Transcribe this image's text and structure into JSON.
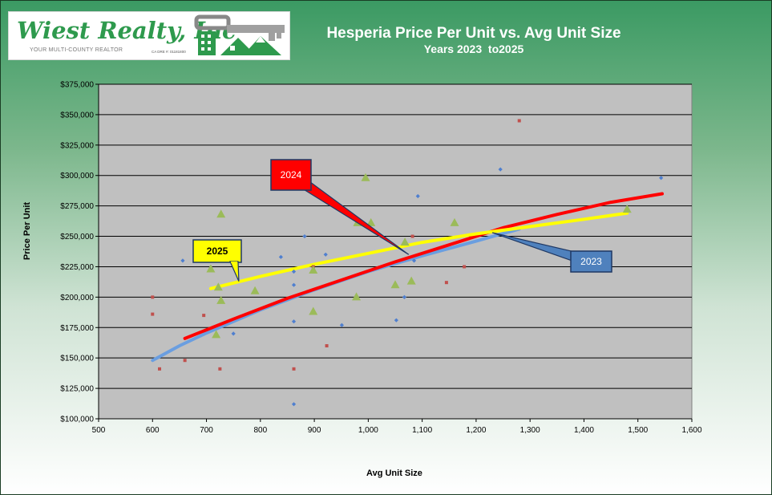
{
  "logo": {
    "name": "Wiest Realty, Inc",
    "tagline": "YOUR MULTI-COUNTY REALTOR",
    "license": "CA DRE #: 01181800"
  },
  "colors": {
    "plot_background": "#c0c0c0",
    "series_2023": "#4f7fcf",
    "series_2024": "#c0504d",
    "series_2025": "#9bbb59",
    "trend_2023": "#6a9ee0",
    "trend_2024": "#ff0000",
    "trend_2025": "#ffff00",
    "callout_2023": "#4f81bd",
    "callout_2024": "#ff0000",
    "callout_2025": "#ffff00"
  },
  "chart_data": {
    "type": "scatter",
    "title": "Hesperia Price Per Unit vs. Avg Unit Size",
    "subtitle": "Years 2023  to2025",
    "xlabel": "Avg  Unit  Size",
    "ylabel": "Price Per Unit",
    "xlim": [
      500,
      1600
    ],
    "ylim": [
      100000,
      375000
    ],
    "x_ticks": [
      "500",
      "600",
      "700",
      "800",
      "900",
      "1,000",
      "1,100",
      "1,200",
      "1,300",
      "1,400",
      "1,500",
      "1,600"
    ],
    "y_ticks": [
      "$100,000",
      "$125,000",
      "$150,000",
      "$175,000",
      "$200,000",
      "$225,000",
      "$250,000",
      "$275,000",
      "$300,000",
      "$325,000",
      "$350,000",
      "$375,000"
    ],
    "grid": "horizontal",
    "series": [
      {
        "name": "2023",
        "marker": "diamond",
        "points": [
          [
            656,
            230000
          ],
          [
            750,
            170000
          ],
          [
            838,
            233000
          ],
          [
            862,
            221000
          ],
          [
            862,
            210000
          ],
          [
            862,
            180000
          ],
          [
            862,
            112000
          ],
          [
            882,
            250000
          ],
          [
            921,
            235000
          ],
          [
            951,
            177000
          ],
          [
            1052,
            181000
          ],
          [
            1067,
            200000
          ],
          [
            1085,
            230000
          ],
          [
            1092,
            283000
          ],
          [
            1245,
            305000
          ],
          [
            1543,
            298000
          ]
        ],
        "trend": [
          [
            600,
            148000
          ],
          [
            650,
            160000
          ],
          [
            700,
            170500
          ],
          [
            800,
            189500
          ],
          [
            900,
            206000
          ],
          [
            1000,
            221000
          ],
          [
            1100,
            234000
          ],
          [
            1200,
            246000
          ],
          [
            1280,
            256000
          ]
        ]
      },
      {
        "name": "2024",
        "marker": "square",
        "points": [
          [
            600,
            200000
          ],
          [
            600,
            186000
          ],
          [
            613,
            141000
          ],
          [
            660,
            148000
          ],
          [
            695,
            185000
          ],
          [
            725,
            141000
          ],
          [
            862,
            141000
          ],
          [
            898,
            225000
          ],
          [
            923,
            160000
          ],
          [
            1082,
            250000
          ],
          [
            1145,
            212000
          ],
          [
            1178,
            225000
          ],
          [
            1280,
            345000
          ]
        ],
        "trend": [
          [
            660,
            166000
          ],
          [
            750,
            182000
          ],
          [
            850,
            199000
          ],
          [
            950,
            214000
          ],
          [
            1050,
            229000
          ],
          [
            1150,
            243000
          ],
          [
            1250,
            257000
          ],
          [
            1350,
            268000
          ],
          [
            1450,
            278000
          ],
          [
            1545,
            285000
          ]
        ]
      },
      {
        "name": "2025",
        "marker": "triangle",
        "points": [
          [
            708,
            223000
          ],
          [
            718,
            169000
          ],
          [
            722,
            208000
          ],
          [
            727,
            197000
          ],
          [
            727,
            268000
          ],
          [
            790,
            205000
          ],
          [
            898,
            188000
          ],
          [
            898,
            222000
          ],
          [
            978,
            200000
          ],
          [
            980,
            261000
          ],
          [
            995,
            298000
          ],
          [
            1005,
            261000
          ],
          [
            1050,
            210000
          ],
          [
            1068,
            245000
          ],
          [
            1080,
            213000
          ],
          [
            1160,
            261000
          ],
          [
            1480,
            272000
          ]
        ],
        "trend": [
          [
            708,
            207000
          ],
          [
            800,
            217000
          ],
          [
            900,
            227000
          ],
          [
            1000,
            236000
          ],
          [
            1100,
            245000
          ],
          [
            1200,
            252000
          ],
          [
            1300,
            258000
          ],
          [
            1400,
            264000
          ],
          [
            1480,
            269000
          ]
        ]
      }
    ],
    "callouts": [
      {
        "label": "2024",
        "color": "#ff0000",
        "text_color": "#ffffff",
        "anchor": [
          1075,
          235000
        ]
      },
      {
        "label": "2023",
        "color": "#4f81bd",
        "text_color": "#ffffff",
        "anchor": [
          1230,
          253000
        ]
      },
      {
        "label": "2025",
        "color": "#ffff00",
        "text_color": "#000000",
        "anchor": [
          760,
          213000
        ]
      }
    ]
  }
}
